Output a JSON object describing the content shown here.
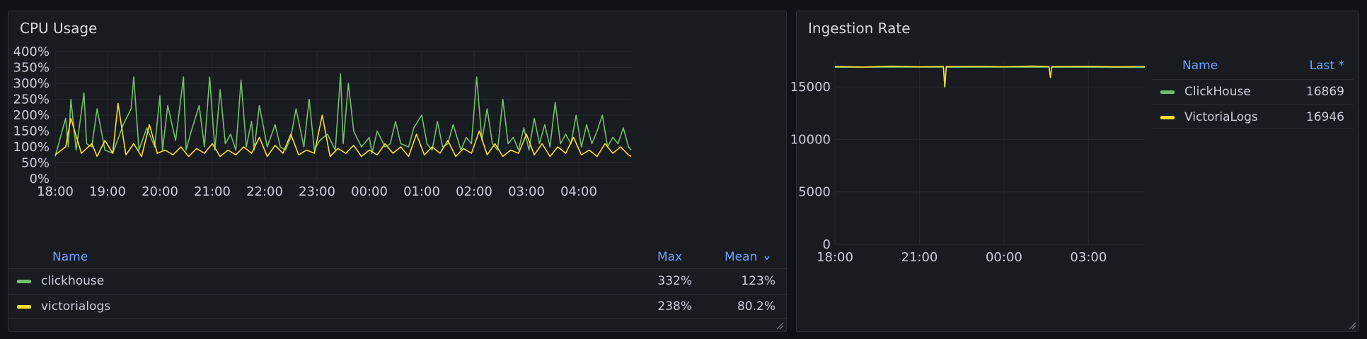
{
  "cpu_panel": {
    "title": "CPU Usage",
    "legend": {
      "name_header": "Name",
      "max_header": "Max",
      "mean_header": "Mean",
      "rows": [
        {
          "name": "clickhouse",
          "max": "332%",
          "mean": "123%",
          "color": "#73bf69"
        },
        {
          "name": "victorialogs",
          "max": "238%",
          "mean": "80.2%",
          "color": "#fade2a"
        }
      ]
    }
  },
  "ingestion_panel": {
    "title": "Ingestion Rate",
    "legend": {
      "name_header": "Name",
      "last_header": "Last *",
      "rows": [
        {
          "name": "ClickHouse",
          "last": "16869",
          "color": "#73bf69"
        },
        {
          "name": "VictoriaLogs",
          "last": "16946",
          "color": "#fade2a"
        }
      ]
    }
  },
  "chart_data": [
    {
      "type": "line",
      "title": "CPU Usage",
      "y_unit": "%",
      "ylim": [
        0,
        400
      ],
      "y_ticks": [
        "0%",
        "50%",
        "100%",
        "150%",
        "200%",
        "250%",
        "300%",
        "350%",
        "400%"
      ],
      "x_ticks": [
        "18:00",
        "19:00",
        "20:00",
        "21:00",
        "22:00",
        "23:00",
        "00:00",
        "01:00",
        "02:00",
        "03:00",
        "04:00"
      ],
      "x_hours": [
        0,
        11
      ],
      "series": [
        {
          "name": "clickhouse",
          "color": "#73bf69",
          "x": [
            0,
            0.2,
            0.25,
            0.3,
            0.4,
            0.55,
            0.6,
            0.7,
            0.8,
            0.95,
            1.1,
            1.3,
            1.45,
            1.5,
            1.6,
            1.75,
            1.9,
            2.0,
            2.05,
            2.15,
            2.3,
            2.45,
            2.5,
            2.6,
            2.75,
            2.85,
            2.95,
            3.05,
            3.15,
            3.25,
            3.35,
            3.45,
            3.55,
            3.65,
            3.75,
            3.8,
            3.9,
            4.05,
            4.2,
            4.3,
            4.4,
            4.5,
            4.6,
            4.75,
            4.85,
            4.95,
            5.05,
            5.2,
            5.35,
            5.45,
            5.5,
            5.6,
            5.7,
            5.85,
            6.0,
            6.05,
            6.15,
            6.3,
            6.4,
            6.5,
            6.6,
            6.75,
            6.85,
            7.0,
            7.1,
            7.2,
            7.3,
            7.4,
            7.5,
            7.6,
            7.75,
            7.85,
            7.95,
            8.05,
            8.15,
            8.25,
            8.35,
            8.45,
            8.55,
            8.65,
            8.75,
            8.85,
            8.95,
            9.05,
            9.15,
            9.25,
            9.35,
            9.45,
            9.55,
            9.65,
            9.75,
            9.85,
            9.95,
            10.05,
            10.15,
            10.25,
            10.35,
            10.45,
            10.55,
            10.65,
            10.75,
            10.85,
            10.95,
            11.0
          ],
          "y": [
            70,
            190,
            100,
            250,
            90,
            270,
            110,
            100,
            220,
            90,
            80,
            170,
            220,
            320,
            90,
            160,
            100,
            260,
            90,
            230,
            120,
            320,
            90,
            150,
            230,
            100,
            320,
            90,
            280,
            110,
            140,
            90,
            310,
            100,
            180,
            90,
            230,
            100,
            170,
            100,
            90,
            130,
            220,
            100,
            250,
            90,
            120,
            140,
            90,
            330,
            110,
            300,
            150,
            100,
            130,
            80,
            150,
            100,
            110,
            180,
            110,
            100,
            160,
            200,
            110,
            90,
            180,
            100,
            110,
            170,
            90,
            130,
            110,
            320,
            120,
            220,
            110,
            90,
            250,
            110,
            130,
            90,
            160,
            90,
            190,
            110,
            170,
            100,
            240,
            110,
            140,
            110,
            200,
            100,
            170,
            110,
            150,
            200,
            100,
            130,
            110,
            160,
            100,
            90
          ],
          "max": 332,
          "mean": 123
        },
        {
          "name": "victorialogs",
          "color": "#fade2a",
          "x": [
            0,
            0.2,
            0.3,
            0.5,
            0.7,
            0.8,
            0.95,
            1.1,
            1.2,
            1.35,
            1.5,
            1.65,
            1.8,
            1.95,
            2.1,
            2.25,
            2.4,
            2.55,
            2.7,
            2.85,
            3.0,
            3.15,
            3.3,
            3.45,
            3.6,
            3.75,
            3.9,
            4.05,
            4.2,
            4.35,
            4.5,
            4.65,
            4.8,
            4.95,
            5.1,
            5.25,
            5.4,
            5.55,
            5.7,
            5.85,
            6.0,
            6.15,
            6.3,
            6.45,
            6.6,
            6.75,
            6.9,
            7.05,
            7.2,
            7.35,
            7.5,
            7.65,
            7.8,
            7.95,
            8.1,
            8.25,
            8.4,
            8.55,
            8.7,
            8.85,
            9.0,
            9.15,
            9.3,
            9.45,
            9.6,
            9.75,
            9.9,
            10.05,
            10.2,
            10.35,
            10.5,
            10.65,
            10.8,
            10.95,
            11.0
          ],
          "y": [
            75,
            100,
            190,
            80,
            110,
            70,
            120,
            80,
            237,
            75,
            110,
            70,
            170,
            80,
            90,
            75,
            100,
            70,
            95,
            80,
            110,
            70,
            90,
            75,
            100,
            80,
            130,
            70,
            105,
            80,
            140,
            75,
            90,
            80,
            200,
            70,
            95,
            80,
            105,
            70,
            90,
            75,
            110,
            80,
            100,
            70,
            140,
            75,
            100,
            80,
            120,
            70,
            95,
            80,
            150,
            75,
            110,
            70,
            90,
            80,
            140,
            75,
            110,
            70,
            100,
            80,
            130,
            75,
            90,
            70,
            110,
            80,
            100,
            75,
            70
          ],
          "max": 238,
          "mean": 80.2
        }
      ]
    },
    {
      "type": "line",
      "title": "Ingestion Rate",
      "ylim": [
        0,
        17500
      ],
      "y_ticks": [
        "0",
        "5000",
        "10000",
        "15000"
      ],
      "x_ticks": [
        "18:00",
        "21:00",
        "00:00",
        "03:00"
      ],
      "x_hours": [
        0,
        11
      ],
      "series": [
        {
          "name": "ClickHouse",
          "color": "#73bf69",
          "x": [
            0,
            3.85,
            3.9,
            3.95,
            7.6,
            7.65,
            7.7,
            11
          ],
          "y": [
            16880,
            16900,
            15000,
            16880,
            16900,
            15900,
            16880,
            16869
          ],
          "last": 16869
        },
        {
          "name": "VictoriaLogs",
          "color": "#fade2a",
          "x": [
            0,
            1,
            2,
            3,
            3.85,
            3.9,
            3.95,
            5,
            6,
            7,
            7.6,
            7.65,
            7.7,
            9,
            10,
            11
          ],
          "y": [
            16950,
            16900,
            16980,
            16920,
            16950,
            15000,
            16940,
            16960,
            16930,
            16990,
            16950,
            15900,
            16940,
            16970,
            16920,
            16946
          ],
          "last": 16946
        }
      ]
    }
  ]
}
